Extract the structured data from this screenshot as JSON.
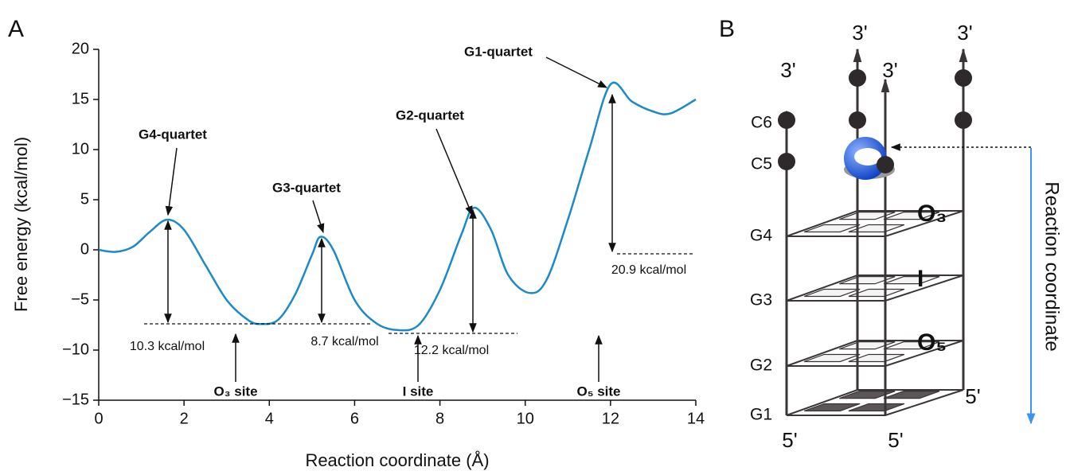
{
  "chart_data": {
    "type": "line",
    "panel_label": "A",
    "xlabel": "Reaction coordinate (Å)",
    "ylabel": "Free energy (kcal/mol)",
    "x": [
      0,
      0.4,
      0.8,
      1.2,
      1.6,
      2.0,
      2.5,
      3.0,
      3.5,
      3.8,
      4.2,
      4.6,
      5.0,
      5.2,
      5.5,
      6.0,
      6.5,
      7.0,
      7.5,
      8.0,
      8.5,
      8.8,
      9.2,
      9.6,
      10.1,
      10.5,
      11.0,
      11.5,
      12.0,
      12.5,
      13.0,
      13.4,
      14.0
    ],
    "values": [
      0,
      -0.2,
      0.3,
      1.8,
      3.0,
      2.0,
      -1.5,
      -5.0,
      -7.0,
      -7.4,
      -7.0,
      -4.5,
      -0.5,
      1.3,
      0,
      -5.0,
      -7.3,
      -8.0,
      -7.5,
      -4.0,
      1.5,
      4.2,
      2.0,
      -2.5,
      -4.3,
      -3.0,
      3.0,
      10.0,
      16.5,
      14.8,
      13.8,
      13.6,
      15.0
    ],
    "color": "#1a8bc6",
    "xlim": [
      0,
      14
    ],
    "xticks": [
      0,
      2,
      4,
      6,
      8,
      10,
      12,
      14
    ],
    "ylim": [
      -15,
      20
    ],
    "yticks": [
      {
        "value": -15,
        "label": "−15"
      },
      {
        "value": -10,
        "label": "−10"
      },
      {
        "value": -5,
        "label": "−5"
      },
      0,
      5,
      10,
      15,
      20
    ],
    "annotations": [
      "G4-quartet",
      "G3-quartet",
      "G2-quartet",
      "G1-quartet",
      "10.3 kcal/mol",
      "8.7 kcal/mol",
      "12.2 kcal/mol",
      "20.9 kcal/mol",
      "O₃ site",
      "I site",
      "O₅ site"
    ]
  },
  "diagram": {
    "panel_label": "B",
    "top_labels": [
      "3'",
      "3'",
      "3'",
      "3'"
    ],
    "bottom_labels": [
      "5'",
      "5'",
      "5'"
    ],
    "level_labels": [
      "C6",
      "C5",
      "G4",
      "G3",
      "G2",
      "G1"
    ],
    "site_labels": [
      "O₃",
      "I",
      "O₅"
    ],
    "axis_label": "Reaction coordinate"
  }
}
